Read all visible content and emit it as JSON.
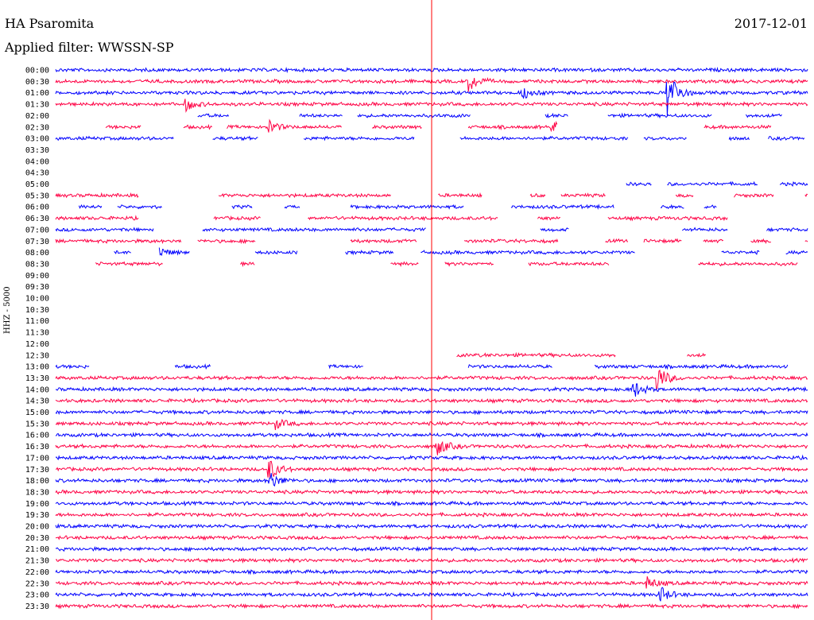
{
  "header": {
    "station": "HA Psaromita",
    "date": "2017-12-01",
    "filter": "Applied filter: WWSSN-SP"
  },
  "chart_data": {
    "type": "line",
    "description_type": "helicorder",
    "ylabel": "HHZ - 5000",
    "row_labels": [
      "00:00",
      "00:30",
      "01:00",
      "01:30",
      "02:00",
      "02:30",
      "03:00",
      "03:30",
      "04:00",
      "04:30",
      "05:00",
      "05:30",
      "06:00",
      "06:30",
      "07:00",
      "07:30",
      "08:00",
      "08:30",
      "09:00",
      "09:30",
      "10:00",
      "10:30",
      "11:00",
      "11:30",
      "12:00",
      "12:30",
      "13:00",
      "13:30",
      "14:00",
      "14:30",
      "15:00",
      "15:30",
      "16:00",
      "16:30",
      "17:00",
      "17:30",
      "18:00",
      "18:30",
      "19:00",
      "19:30",
      "20:00",
      "20:30",
      "21:00",
      "21:30",
      "22:00",
      "22:30",
      "23:00",
      "23:30"
    ],
    "colors": {
      "even": "#0000ff",
      "odd": "#ff0044",
      "marker": "#ff0000"
    },
    "marker_minute": 15,
    "row_minutes": 30,
    "data_gaps": [
      {
        "row": 7,
        "start": 0,
        "end": 30
      },
      {
        "row": 8,
        "start": 0,
        "end": 30
      },
      {
        "row": 9,
        "start": 0,
        "end": 30
      },
      {
        "row": 10,
        "start": 0,
        "end": 22
      },
      {
        "row": 18,
        "start": 0,
        "end": 30
      },
      {
        "row": 19,
        "start": 0,
        "end": 30
      },
      {
        "row": 20,
        "start": 0,
        "end": 30
      },
      {
        "row": 21,
        "start": 0,
        "end": 30
      },
      {
        "row": 22,
        "start": 0,
        "end": 30
      },
      {
        "row": 23,
        "start": 0,
        "end": 30
      },
      {
        "row": 24,
        "start": 0,
        "end": 30
      },
      {
        "row": 25,
        "start": 0,
        "end": 16
      }
    ],
    "events": [
      {
        "row": 1,
        "minute": 16.5,
        "amplitude": 3.0
      },
      {
        "row": 2,
        "minute": 18.6,
        "amplitude": 2.0
      },
      {
        "row": 2,
        "minute": 24.4,
        "amplitude": 8.0
      },
      {
        "row": 3,
        "minute": 5.2,
        "amplitude": 2.0
      },
      {
        "row": 5,
        "minute": 8.5,
        "amplitude": 2.0
      },
      {
        "row": 5,
        "minute": 19.8,
        "amplitude": 1.5
      },
      {
        "row": 10,
        "minute": 19.0,
        "amplitude": 1.5
      },
      {
        "row": 12,
        "minute": 10.2,
        "amplitude": 3.0
      },
      {
        "row": 14,
        "minute": 4.3,
        "amplitude": 3.0
      },
      {
        "row": 16,
        "minute": 4.1,
        "amplitude": 1.5
      },
      {
        "row": 27,
        "minute": 24.0,
        "amplitude": 4.0
      },
      {
        "row": 28,
        "minute": 23.0,
        "amplitude": 3.0
      },
      {
        "row": 31,
        "minute": 8.8,
        "amplitude": 1.5
      },
      {
        "row": 33,
        "minute": 15.2,
        "amplitude": 3.0
      },
      {
        "row": 35,
        "minute": 8.5,
        "amplitude": 3.5
      },
      {
        "row": 36,
        "minute": 8.5,
        "amplitude": 3.0
      },
      {
        "row": 45,
        "minute": 23.6,
        "amplitude": 2.0
      },
      {
        "row": 46,
        "minute": 24.1,
        "amplitude": 2.5
      }
    ]
  }
}
